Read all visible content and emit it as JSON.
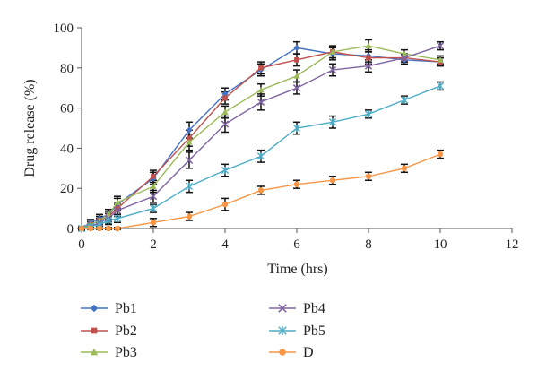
{
  "chart_data": {
    "type": "line",
    "title": "",
    "xlabel": "Time (hrs)",
    "ylabel": "Drug release (%)",
    "xlim": [
      0,
      12
    ],
    "ylim": [
      0,
      100
    ],
    "x_ticks": [
      "0",
      "2",
      "4",
      "6",
      "8",
      "10",
      "12"
    ],
    "y_ticks": [
      "0",
      "20",
      "40",
      "60",
      "80",
      "100"
    ],
    "grid": false,
    "legend_position": "bottom",
    "x": [
      0,
      0.25,
      0.5,
      0.75,
      1,
      2,
      3,
      4,
      5,
      6,
      7,
      8,
      9,
      10
    ],
    "series": [
      {
        "name": "Pb1",
        "color": "#4472c4",
        "marker": "diamond",
        "values": [
          0,
          3,
          5,
          7,
          12,
          25,
          49,
          67,
          79,
          90,
          87,
          86,
          84,
          83
        ],
        "errors": [
          1,
          1.5,
          2,
          2.5,
          3,
          3,
          4,
          3,
          3,
          3,
          3,
          3,
          2,
          2
        ]
      },
      {
        "name": "Pb2",
        "color": "#c0504d",
        "marker": "square",
        "values": [
          0,
          2,
          4,
          6,
          10,
          26,
          45,
          65,
          80,
          84,
          88,
          85,
          85,
          83
        ],
        "errors": [
          1,
          1.5,
          2,
          2.5,
          3,
          3,
          4,
          3,
          3,
          3,
          3,
          3,
          2,
          2
        ]
      },
      {
        "name": "Pb3",
        "color": "#9bbb59",
        "marker": "triangle",
        "values": [
          0,
          2,
          4,
          7,
          13,
          21,
          43,
          58,
          69,
          76,
          88,
          91,
          87,
          84
        ],
        "errors": [
          1,
          1.5,
          2,
          2.5,
          3,
          3,
          4,
          3,
          3,
          3,
          3,
          3,
          2,
          2
        ]
      },
      {
        "name": "Pb4",
        "color": "#8064a2",
        "marker": "x",
        "values": [
          0,
          1,
          3,
          5,
          9,
          16,
          34,
          52,
          63,
          70,
          79,
          81,
          85,
          91
        ],
        "errors": [
          1,
          1.5,
          2,
          2.5,
          3,
          3,
          4,
          4,
          4,
          3,
          3,
          3,
          2,
          2
        ]
      },
      {
        "name": "Pb5",
        "color": "#4bacc6",
        "marker": "asterisk",
        "values": [
          0,
          1,
          2,
          4,
          5,
          10,
          21,
          29,
          36,
          50,
          53,
          57,
          64,
          71
        ],
        "errors": [
          1,
          1.5,
          2,
          2,
          2,
          2,
          3,
          3,
          3,
          3,
          3,
          2,
          2,
          2
        ]
      },
      {
        "name": "D",
        "color": "#f79646",
        "marker": "circle",
        "values": [
          0,
          0,
          0,
          0,
          0,
          3,
          6,
          12,
          19,
          22,
          24,
          26,
          30,
          37
        ],
        "errors": [
          0.5,
          0.5,
          0.5,
          0.5,
          0.5,
          2,
          2,
          3,
          2,
          2,
          2,
          2,
          2,
          2
        ]
      }
    ]
  }
}
